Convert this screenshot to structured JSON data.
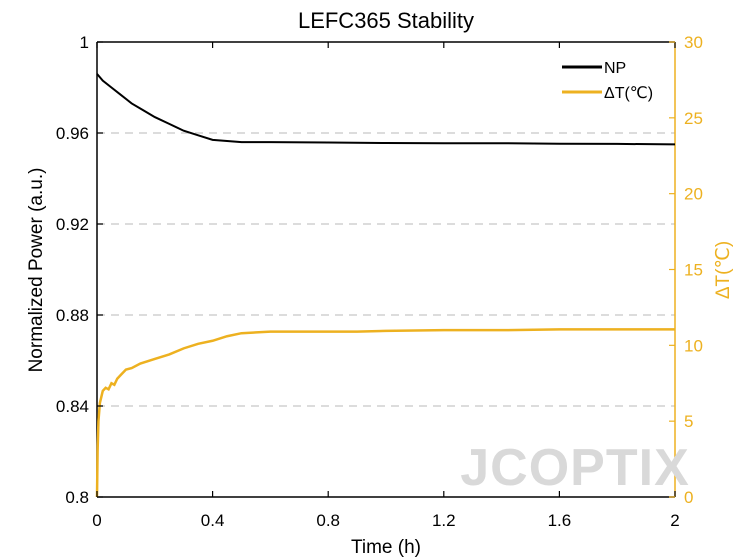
{
  "chart_data": {
    "type": "line",
    "title": "LEFC365 Stability",
    "xlabel": "Time (h)",
    "ylabel_left": "Normalized Power (a.u.)",
    "ylabel_right": "ΔT(℃)",
    "watermark": "JCOPTIX",
    "x_ticks": [
      {
        "value": 0,
        "label": "0"
      },
      {
        "value": 0.4,
        "label": "0.4"
      },
      {
        "value": 0.8,
        "label": "0.8"
      },
      {
        "value": 1.2,
        "label": "1.2"
      },
      {
        "value": 1.6,
        "label": "1.6"
      },
      {
        "value": 2.0,
        "label": "2"
      }
    ],
    "x_tick_positions": [
      0,
      0.4,
      0.8,
      1.2,
      1.6,
      2.0
    ],
    "y_left_ticks": [
      "0.8",
      "0.84",
      "0.88",
      "0.92",
      "0.96",
      "1"
    ],
    "y_left_tick_values": [
      0.8,
      0.84,
      0.88,
      0.92,
      0.96,
      1.0
    ],
    "y_right_ticks": [
      "0",
      "5",
      "10",
      "15",
      "20",
      "25",
      "30"
    ],
    "y_right_tick_values": [
      0,
      5,
      10,
      15,
      20,
      25,
      30
    ],
    "xlim": [
      0,
      2
    ],
    "ylim_left": [
      0.8,
      1.0
    ],
    "ylim_right": [
      0,
      30
    ],
    "grid": "dashed horizontal at left-axis ticks",
    "legend_position": "top-right",
    "colors": {
      "np": "#000000",
      "dt": "#EDB120"
    },
    "series": [
      {
        "name": "NP",
        "axis": "left",
        "x": [
          0,
          0.02,
          0.05,
          0.08,
          0.12,
          0.16,
          0.2,
          0.25,
          0.3,
          0.35,
          0.4,
          0.45,
          0.5,
          0.6,
          0.8,
          1.0,
          1.2,
          1.4,
          1.6,
          1.8,
          2.0
        ],
        "values": [
          0.986,
          0.983,
          0.98,
          0.977,
          0.973,
          0.97,
          0.967,
          0.964,
          0.961,
          0.959,
          0.957,
          0.9565,
          0.956,
          0.956,
          0.9558,
          0.9556,
          0.9555,
          0.9555,
          0.9553,
          0.9552,
          0.955
        ]
      },
      {
        "name": "ΔT(℃)",
        "axis": "right",
        "x": [
          0,
          0.002,
          0.005,
          0.01,
          0.015,
          0.02,
          0.03,
          0.04,
          0.05,
          0.06,
          0.07,
          0.08,
          0.1,
          0.12,
          0.15,
          0.2,
          0.25,
          0.3,
          0.35,
          0.4,
          0.45,
          0.5,
          0.6,
          0.7,
          0.8,
          0.9,
          1.0,
          1.2,
          1.4,
          1.6,
          1.8,
          2.0
        ],
        "values": [
          0,
          3.0,
          5.0,
          6.2,
          6.6,
          7.0,
          7.2,
          7.1,
          7.5,
          7.4,
          7.8,
          8.0,
          8.4,
          8.5,
          8.8,
          9.1,
          9.4,
          9.8,
          10.1,
          10.3,
          10.6,
          10.8,
          10.9,
          10.9,
          10.9,
          10.9,
          10.95,
          11.0,
          11.0,
          11.05,
          11.05,
          11.05
        ]
      }
    ]
  }
}
